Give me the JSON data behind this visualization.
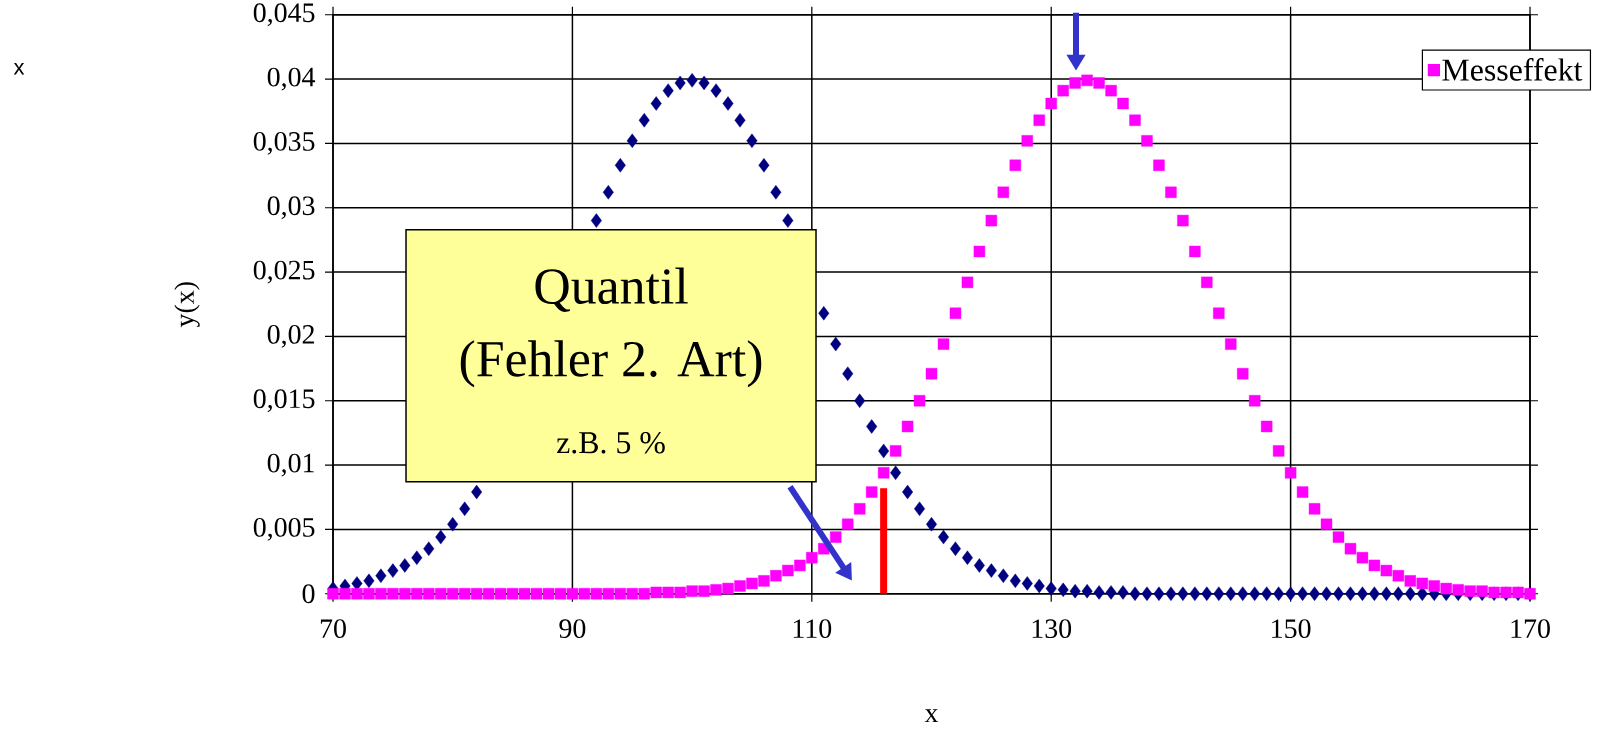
{
  "chart_data": {
    "type": "scatter",
    "xlabel": "x",
    "ylabel": "y(x)",
    "x": [
      70,
      71,
      72,
      73,
      74,
      75,
      76,
      77,
      78,
      79,
      80,
      81,
      82,
      83,
      84,
      85,
      86,
      87,
      88,
      89,
      90,
      91,
      92,
      93,
      94,
      95,
      96,
      97,
      98,
      99,
      100,
      101,
      102,
      103,
      104,
      105,
      106,
      107,
      108,
      109,
      110,
      111,
      112,
      113,
      114,
      115,
      116,
      117,
      118,
      119,
      120,
      121,
      122,
      123,
      124,
      125,
      126,
      127,
      128,
      129,
      130,
      131,
      132,
      133,
      134,
      135,
      136,
      137,
      138,
      139,
      140,
      141,
      142,
      143,
      144,
      145,
      146,
      147,
      148,
      149,
      150,
      151,
      152,
      153,
      154,
      155,
      156,
      157,
      158,
      159,
      160,
      161,
      162,
      163,
      164,
      165,
      166,
      167,
      168,
      169,
      170
    ],
    "series": [
      {
        "color": "#000080",
        "marker": "diamond",
        "values": [
          0.0004,
          0.0006,
          0.0008,
          0.001,
          0.0014,
          0.0018,
          0.0022,
          0.0028,
          0.0035,
          0.0044,
          0.0054,
          0.0066,
          0.0079,
          null,
          null,
          null,
          null,
          null,
          null,
          null,
          null,
          null,
          0.029,
          0.0312,
          0.0333,
          0.0352,
          0.0368,
          0.0381,
          0.0391,
          0.0397,
          0.0399,
          0.0397,
          0.0391,
          0.0381,
          0.0368,
          0.0352,
          0.0333,
          0.0312,
          0.029,
          null,
          null,
          0.0218,
          0.0194,
          0.0171,
          0.015,
          0.013,
          0.0111,
          0.0094,
          0.0079,
          0.0066,
          0.0054,
          0.0044,
          0.0035,
          0.0028,
          0.0022,
          0.0018,
          0.0014,
          0.001,
          0.0008,
          0.0006,
          0.0004,
          0.0003,
          0.0002,
          0.0002,
          0.0001,
          0.0001,
          0.0001,
          0,
          0,
          0,
          0,
          0,
          0,
          0,
          0,
          0,
          0,
          0,
          0,
          0,
          0,
          0,
          0,
          0,
          0,
          0,
          0,
          0,
          0,
          0,
          0,
          0,
          0,
          0,
          0,
          0,
          0,
          0,
          0,
          0,
          0
        ]
      },
      {
        "name": "Messeffekt",
        "color": "#ff00ff",
        "marker": "square",
        "values": [
          0,
          0,
          0,
          0,
          0,
          0,
          0,
          0,
          0,
          0,
          0,
          0,
          0,
          0,
          0,
          0,
          0,
          0,
          0,
          0,
          0,
          0,
          0,
          0,
          0,
          0,
          0,
          0.0001,
          0.0001,
          0.0001,
          0.0002,
          0.0002,
          0.0003,
          0.0004,
          0.0006,
          0.0008,
          0.001,
          0.0014,
          0.0018,
          0.0022,
          0.0028,
          0.0035,
          0.0044,
          0.0054,
          0.0066,
          0.0079,
          0.0094,
          0.0111,
          0.013,
          0.015,
          0.0171,
          0.0194,
          0.0218,
          0.0242,
          0.0266,
          0.029,
          0.0312,
          0.0333,
          0.0352,
          0.0368,
          0.0381,
          0.0391,
          0.0397,
          0.0399,
          0.0397,
          0.0391,
          0.0381,
          0.0368,
          0.0352,
          0.0333,
          0.0312,
          0.029,
          0.0266,
          0.0242,
          0.0218,
          0.0194,
          0.0171,
          0.015,
          0.013,
          0.0111,
          0.0094,
          0.0079,
          0.0066,
          0.0054,
          0.0044,
          0.0035,
          0.0028,
          0.0022,
          0.0018,
          0.0014,
          0.001,
          0.0008,
          0.0006,
          0.0004,
          0.0003,
          0.0002,
          0.0002,
          0.0001,
          0.0001,
          0.0001,
          0
        ]
      },
      {
        "type": "line",
        "color": "#ff0000",
        "marker": "none",
        "x": [
          116,
          116
        ],
        "values": [
          0,
          0.0082
        ]
      }
    ],
    "xlim": [
      70,
      170
    ],
    "xticks": [
      70,
      90,
      110,
      130,
      150,
      170
    ],
    "ylim": [
      0,
      0.045
    ],
    "yticks": [
      0,
      {
        "value": 0.005,
        "label": "0,005"
      },
      {
        "value": 0.01,
        "label": "0,01"
      },
      {
        "value": 0.015,
        "label": "0,015"
      },
      {
        "value": 0.02,
        "label": "0,02"
      },
      {
        "value": 0.025,
        "label": "0,025"
      },
      {
        "value": 0.03,
        "label": "0,03"
      },
      {
        "value": 0.035,
        "label": "0,035"
      },
      {
        "value": 0.04,
        "label": "0,04"
      },
      {
        "value": 0.045,
        "label": "0,045"
      }
    ],
    "grid": true,
    "legend": "top right",
    "annotations": [
      "Quantil",
      "(Fehler 2. Art)",
      "z.B. 5 %",
      "x"
    ]
  }
}
